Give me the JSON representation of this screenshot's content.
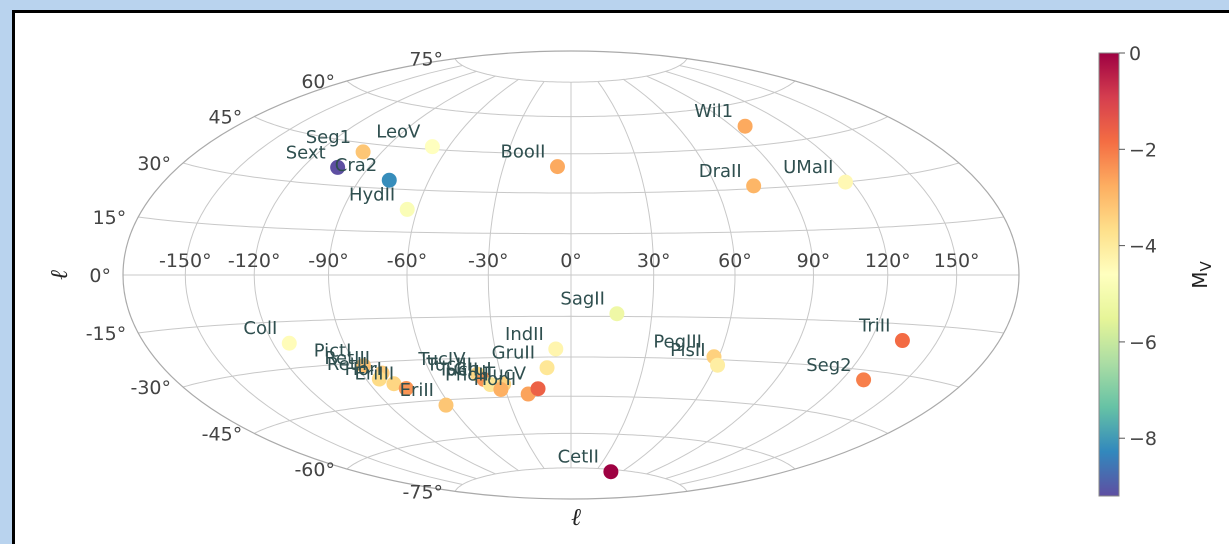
{
  "chart_data": {
    "type": "scatter",
    "projection": "aitoff-hammer",
    "xlabel": "ℓ",
    "ylabel": "ℓ",
    "lon_ticks": [
      -150,
      -120,
      -90,
      -60,
      -30,
      0,
      30,
      60,
      90,
      120,
      150
    ],
    "lat_ticks": [
      -75,
      -60,
      -45,
      -30,
      -15,
      0,
      15,
      30,
      45,
      60,
      75
    ],
    "lon_tick_labels": [
      "-150°",
      "-120°",
      "-90°",
      "-60°",
      "-30°",
      "0°",
      "30°",
      "60°",
      "90°",
      "120°",
      "150°"
    ],
    "lat_tick_labels": [
      "-75°",
      "-60°",
      "-45°",
      "-30°",
      "-15°",
      "0°",
      "15°",
      "30°",
      "45°",
      "60°",
      "75°"
    ],
    "grid": true,
    "colorbar": {
      "label": "M_V",
      "range": [
        -9.2,
        0
      ],
      "ticks": [
        0,
        -2,
        -4,
        -6,
        -8
      ],
      "tick_labels": [
        "0",
        "−2",
        "−4",
        "−6",
        "−8"
      ],
      "colormap": "Spectral",
      "colors": [
        "#5e4fa2",
        "#3288bd",
        "#66c2a5",
        "#abdda4",
        "#e6f598",
        "#ffffbf",
        "#fee08b",
        "#fdae61",
        "#f46d43",
        "#d53e4f",
        "#9e0142"
      ]
    },
    "points": [
      {
        "name": "BooII",
        "l": -6,
        "b": 40,
        "mv": -2.7
      },
      {
        "name": "Wil1",
        "l": 97,
        "b": 52,
        "mv": -2.7
      },
      {
        "name": "DraII",
        "l": 76,
        "b": 31,
        "mv": -2.9
      },
      {
        "name": "UMaII",
        "l": 117,
        "b": 30,
        "mv": -4.4
      },
      {
        "name": "Seg1",
        "l": -99,
        "b": 42,
        "mv": -3.2
      },
      {
        "name": "LeoV",
        "l": -68,
        "b": 46,
        "mv": -4.6
      },
      {
        "name": "Sext",
        "l": -104,
        "b": 36,
        "mv": -9.2
      },
      {
        "name": "Cra2",
        "l": -77,
        "b": 33,
        "mv": -8.2
      },
      {
        "name": "HydII",
        "l": -64,
        "b": 23,
        "mv": -4.8
      },
      {
        "name": "SagII",
        "l": 17,
        "b": -14,
        "mv": -5.2
      },
      {
        "name": "TriII",
        "l": 134,
        "b": -20,
        "mv": -1.8
      },
      {
        "name": "ColI",
        "l": -113,
        "b": -22,
        "mv": -4.5
      },
      {
        "name": "PictI",
        "l": -87,
        "b": -31,
        "mv": -3.1
      },
      {
        "name": "IndII",
        "l": -6,
        "b": -27,
        "mv": -4.3
      },
      {
        "name": "PegIII",
        "l": 58,
        "b": -29,
        "mv": -3.4
      },
      {
        "name": "PisII",
        "l": 61,
        "b": -32,
        "mv": -4.1
      },
      {
        "name": "Seg2",
        "l": 130,
        "b": -33,
        "mv": -2.1
      },
      {
        "name": "RetIII",
        "l": -81,
        "b": -34,
        "mv": -3.3
      },
      {
        "name": "RetII",
        "l": -84,
        "b": -36,
        "mv": -3.6
      },
      {
        "name": "HorI",
        "l": -79,
        "b": -38,
        "mv": -3.5
      },
      {
        "name": "EriIII",
        "l": -75,
        "b": -40,
        "mv": -2.4
      },
      {
        "name": "TucIV",
        "l": -40,
        "b": -36,
        "mv": -3.5
      },
      {
        "name": "TucIII",
        "l": -38,
        "b": -38,
        "mv": -2.4
      },
      {
        "name": "TucII",
        "l": -36,
        "b": -40,
        "mv": -3.9
      },
      {
        "name": "GruII",
        "l": -10,
        "b": -34,
        "mv": -3.9
      },
      {
        "name": "GruI",
        "l": -30,
        "b": -40,
        "mv": -3.4
      },
      {
        "name": "PhoII",
        "l": -32,
        "b": -42,
        "mv": -2.8
      },
      {
        "name": "HorII",
        "l": -20,
        "b": -44,
        "mv": -2.6
      },
      {
        "name": "TucV",
        "l": -15,
        "b": -42,
        "mv": -1.6
      },
      {
        "name": "EriII",
        "l": -62,
        "b": -47,
        "mv": -3.2
      },
      {
        "name": "CetII",
        "l": 48,
        "b": -76,
        "mv": 0.0
      }
    ]
  }
}
